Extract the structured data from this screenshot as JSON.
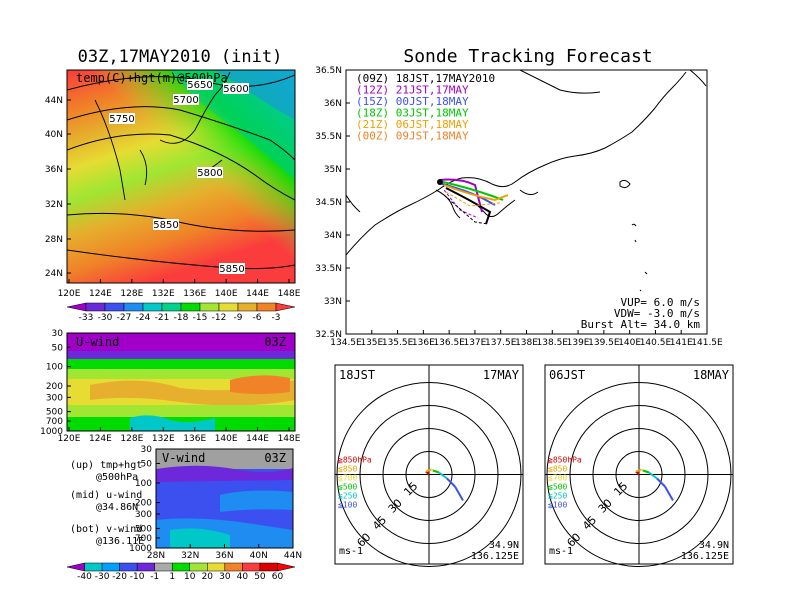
{
  "left_title": "03Z,17MAY2010 (init)",
  "right_title": "Sonde Tracking Forecast",
  "upper_map": {
    "label": "temp(C)+hgt(m)@500hPa",
    "lon_ticks": [
      "120E",
      "124E",
      "128E",
      "132E",
      "136E",
      "140E",
      "144E",
      "148E"
    ],
    "lat_ticks": [
      "44N",
      "40N",
      "36N",
      "32N",
      "28N",
      "24N"
    ],
    "contour_labels": [
      "5650",
      "5600",
      "5700",
      "5750",
      "5800",
      "5850",
      "5850"
    ]
  },
  "temp_colorbar": [
    "-33",
    "-30",
    "-27",
    "-24",
    "-21",
    "-18",
    "-15",
    "-12",
    "-9",
    "-6",
    "-3"
  ],
  "temp_colorbar_colors": [
    "#a000c8",
    "#6e28dc",
    "#3c50f0",
    "#1e8cf0",
    "#00c8c8",
    "#00d28c",
    "#00dc00",
    "#a0e632",
    "#e6dc32",
    "#e6af2d",
    "#f08228",
    "#fa3c3c"
  ],
  "u_wind": {
    "label": "U-wind",
    "time": "03Z",
    "p_ticks": [
      "30",
      "50",
      "100",
      "200",
      "300",
      "500",
      "700",
      "1000"
    ],
    "lon_ticks": [
      "120E",
      "124E",
      "128E",
      "132E",
      "136E",
      "140E",
      "144E",
      "148E"
    ]
  },
  "v_wind": {
    "label": "V-wind",
    "time": "03Z",
    "p_ticks": [
      "30",
      "50",
      "100",
      "200",
      "300",
      "500",
      "700",
      "1000"
    ],
    "lat_ticks": [
      "28N",
      "32N",
      "36N",
      "40N",
      "44N"
    ]
  },
  "legend_notes": [
    [
      "(up) tmp+hgt",
      "@500hPa"
    ],
    [
      "(mid) u-wind",
      "@34.86N"
    ],
    [
      "(bot) v-wind",
      "@136.11E"
    ]
  ],
  "wind_colorbar": [
    "-40",
    "-30",
    "-20",
    "-10",
    "-1",
    "1",
    "10",
    "20",
    "30",
    "40",
    "50",
    "60"
  ],
  "wind_colorbar_colors": [
    "#a000c8",
    "#00c8c8",
    "#00a0ff",
    "#3c50f0",
    "#6e28dc",
    "#aaaaaa",
    "#00dc00",
    "#a0e632",
    "#e6dc32",
    "#f08228",
    "#fa3c3c",
    "#dc0000",
    "#ff0000"
  ],
  "track_map": {
    "lon_ticks": [
      "134.5E",
      "135E",
      "135.5E",
      "136E",
      "136.5E",
      "137E",
      "137.5E",
      "138E",
      "138.5E",
      "139E",
      "139.5E",
      "140E",
      "140.5E",
      "141E",
      "141.5E"
    ],
    "lat_ticks": [
      "36.5N",
      "36N",
      "35.5N",
      "35N",
      "34.5N",
      "34N",
      "33.5N",
      "33N",
      "32.5N"
    ],
    "legend": [
      {
        "text": "(09Z)  18JST,17MAY2010",
        "color": "#000000"
      },
      {
        "text": "(12Z)  21JST,17MAY",
        "color": "#a000c8"
      },
      {
        "text": "(15Z)  00JST,18MAY",
        "color": "#3c50f0"
      },
      {
        "text": "(18Z)  03JST,18MAY",
        "color": "#00c800"
      },
      {
        "text": "(21Z)  06JST,18MAY",
        "color": "#f0a000"
      },
      {
        "text": "(00Z)  09JST,18MAY",
        "color": "#f08228"
      }
    ],
    "vup": "VUP=  6.0  m/s",
    "vdw": "VDW= -3.0  m/s",
    "burst": "Burst Alt=  34.0  km"
  },
  "hodographs": [
    {
      "time": "18JST",
      "date": "17MAY",
      "lat": "34.9N",
      "lon": "136.125E",
      "units": "ms-1",
      "rings": [
        "15",
        "30",
        "45",
        "60"
      ],
      "levels": [
        {
          "t": "≧850hPa",
          "c": "#dc0000"
        },
        {
          "t": "≦850",
          "c": "#f0a000"
        },
        {
          "t": "≦700",
          "c": "#e6dc32"
        },
        {
          "t": "≦500",
          "c": "#00c800"
        },
        {
          "t": "≦250",
          "c": "#00c8c8"
        },
        {
          "t": "≦100",
          "c": "#3c50f0"
        }
      ]
    },
    {
      "time": "06JST",
      "date": "18MAY",
      "lat": "34.9N",
      "lon": "136.125E",
      "units": "ms-1",
      "rings": [
        "15",
        "30",
        "45",
        "60"
      ],
      "levels": [
        {
          "t": "≧850hPa",
          "c": "#dc0000"
        },
        {
          "t": "≦850",
          "c": "#f0a000"
        },
        {
          "t": "≦700",
          "c": "#e6dc32"
        },
        {
          "t": "≦500",
          "c": "#00c800"
        },
        {
          "t": "≦250",
          "c": "#00c8c8"
        },
        {
          "t": "≦100",
          "c": "#3c50f0"
        }
      ]
    }
  ]
}
